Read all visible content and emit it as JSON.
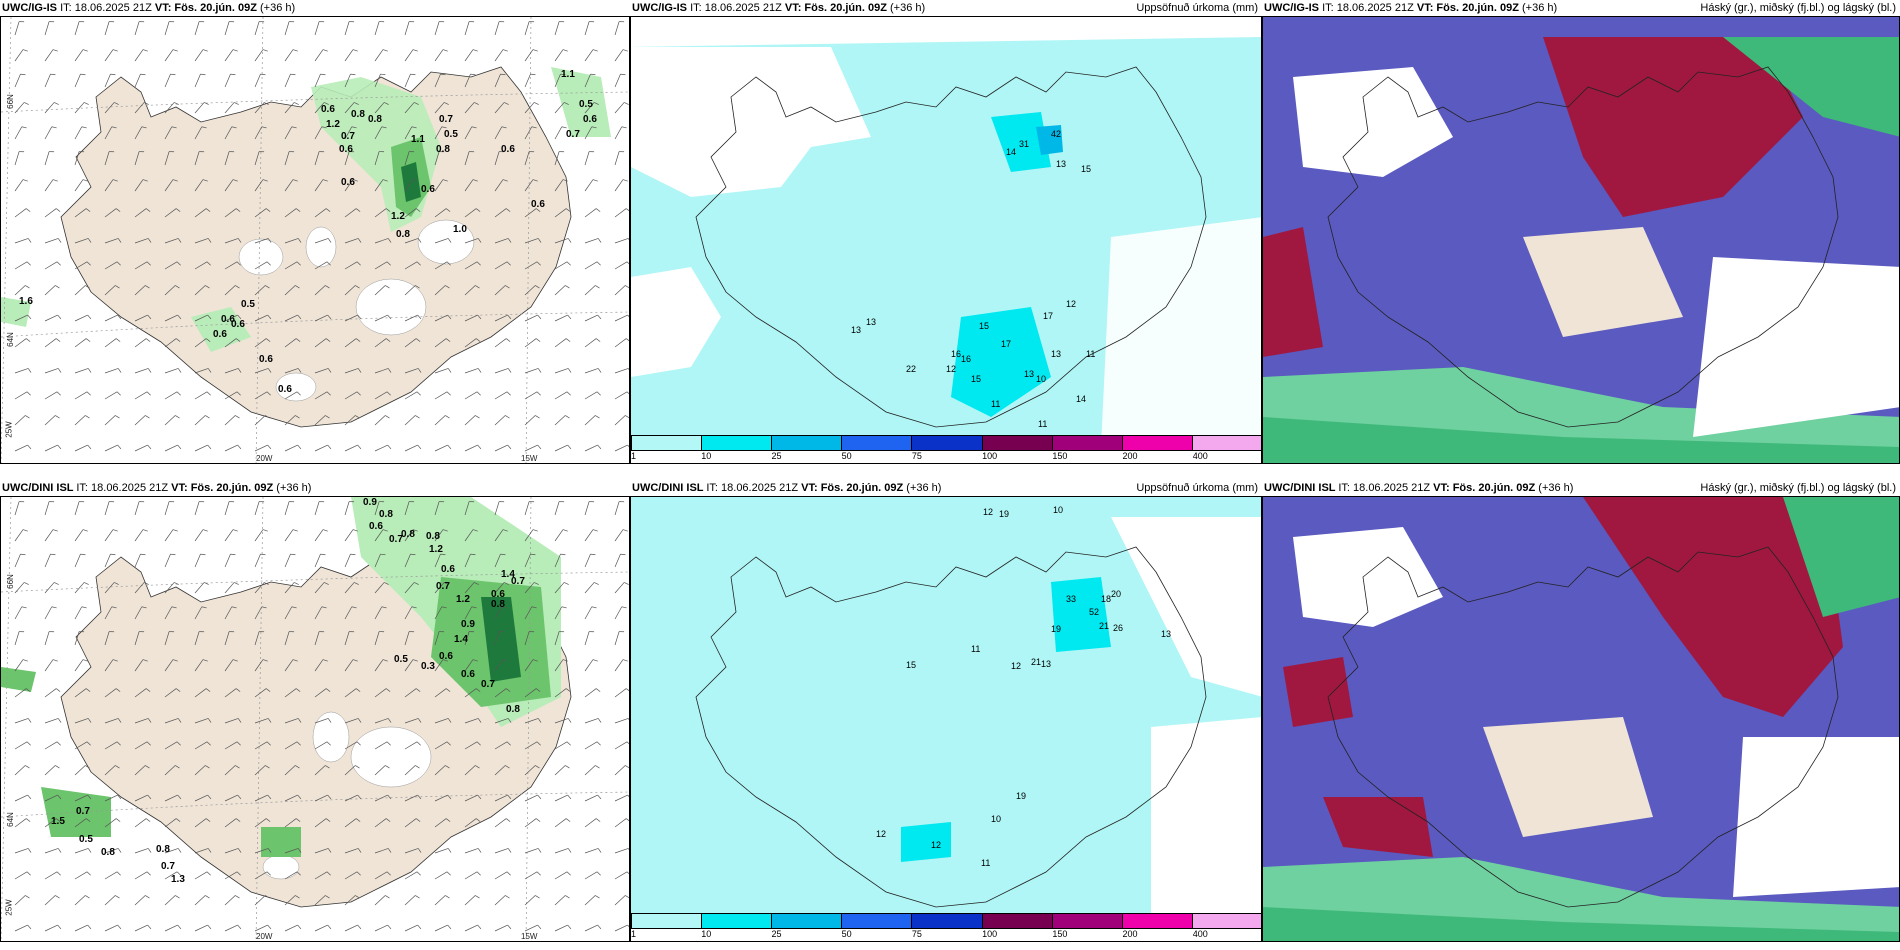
{
  "panels": [
    {
      "row": 0,
      "col": 0,
      "model": "UWC/IG-IS",
      "it": "IT: 18.06.2025 21Z",
      "vt_label": "VT:",
      "vt": "Fös. 20.jún. 09Z",
      "lead": "(+36 h)",
      "right": ""
    },
    {
      "row": 0,
      "col": 1,
      "model": "UWC/IG-IS",
      "it": "IT: 18.06.2025 21Z",
      "vt_label": "VT:",
      "vt": "Fös. 20.jún. 09Z",
      "lead": "(+36 h)",
      "right": "Uppsöfnuð úrkoma (mm)"
    },
    {
      "row": 0,
      "col": 2,
      "model": "UWC/IG-IS",
      "it": "IT: 18.06.2025 21Z",
      "vt_label": "VT:",
      "vt": "Fös. 20.jún. 09Z",
      "lead": "(+36 h)",
      "right": "Háský (gr.), miðský (fj.bl.) og lágský (bl.)"
    },
    {
      "row": 1,
      "col": 0,
      "model": "UWC/DINI ISL",
      "it": "IT: 18.06.2025 21Z",
      "vt_label": "VT:",
      "vt": "Fös. 20.jún. 09Z",
      "lead": "(+36 h)",
      "right": ""
    },
    {
      "row": 1,
      "col": 1,
      "model": "UWC/DINI ISL",
      "it": "IT: 18.06.2025 21Z",
      "vt_label": "VT:",
      "vt": "Fös. 20.jún. 09Z",
      "lead": "(+36 h)",
      "right": "Uppsöfnuð úrkoma (mm)"
    },
    {
      "row": 1,
      "col": 2,
      "model": "UWC/DINI ISL",
      "it": "IT: 18.06.2025 21Z",
      "vt_label": "VT:",
      "vt": "Fös. 20.jún. 09Z",
      "lead": "(+36 h)",
      "right": "Háský (gr.), miðský (fj.bl.) og lágský (bl.)"
    }
  ],
  "axis_labels": {
    "lat_66": "66N",
    "lat_64": "64N",
    "lon_25": "25W",
    "lon_20": "20W",
    "lon_15": "15W"
  },
  "colorbar": {
    "ticks": [
      "1",
      "10",
      "25",
      "50",
      "75",
      "100",
      "150",
      "200",
      "400"
    ],
    "colors": [
      "#b3f7f7",
      "#00e8f0",
      "#00b8e8",
      "#1e64f0",
      "#0a32c8",
      "#780050",
      "#a0007a",
      "#ee00aa",
      "#f4a8ee"
    ]
  },
  "wind_values": {
    "ig": [
      "0.6",
      "1.2",
      "0.8",
      "0.7",
      "0.6",
      "0.8",
      "0.7",
      "0.5",
      "0.8",
      "1.1",
      "0.6",
      "0.6",
      "0.6",
      "1.2",
      "0.8",
      "1.0",
      "0.6",
      "1.1",
      "0.5",
      "0.6",
      "0.7",
      "0.6",
      "0.5",
      "0.6",
      "0.6",
      "0.6",
      "0.6",
      "1.6"
    ],
    "dini": [
      "0.9",
      "0.8",
      "0.6",
      "0.7",
      "0.8",
      "0.8",
      "1.2",
      "0.6",
      "0.7",
      "1.4",
      "1.2",
      "0.7",
      "0.6",
      "0.8",
      "0.9",
      "1.4",
      "0.6",
      "0.5",
      "0.3",
      "0.6",
      "0.7",
      "0.8",
      "1.5",
      "0.7",
      "0.5",
      "0.8",
      "0.8",
      "0.7",
      "1.3"
    ]
  },
  "precip_values": {
    "ig": [
      "42",
      "31",
      "14",
      "13",
      "15",
      "16",
      "13",
      "13",
      "22",
      "12",
      "15",
      "16",
      "17",
      "13",
      "14",
      "12",
      "11",
      "10",
      "11",
      "17",
      "15",
      "13",
      "11"
    ],
    "dini": [
      "12",
      "19",
      "10",
      "33",
      "52",
      "18",
      "21",
      "26",
      "20",
      "13",
      "19",
      "13",
      "21",
      "12",
      "15",
      "11",
      "10",
      "12",
      "19",
      "12",
      "11"
    ]
  },
  "colors": {
    "land": "#efe4d6",
    "precip_bg": "#b0f6f6",
    "cloud_high_green": "#3fb97a",
    "cloud_mid": "#5a5ac0",
    "cloud_low": "#a01840",
    "sea_green": "#6fd0a0",
    "green_light": "#b8ecb8",
    "green_mid": "#6cc46c",
    "green_dark": "#1e7a3c"
  }
}
